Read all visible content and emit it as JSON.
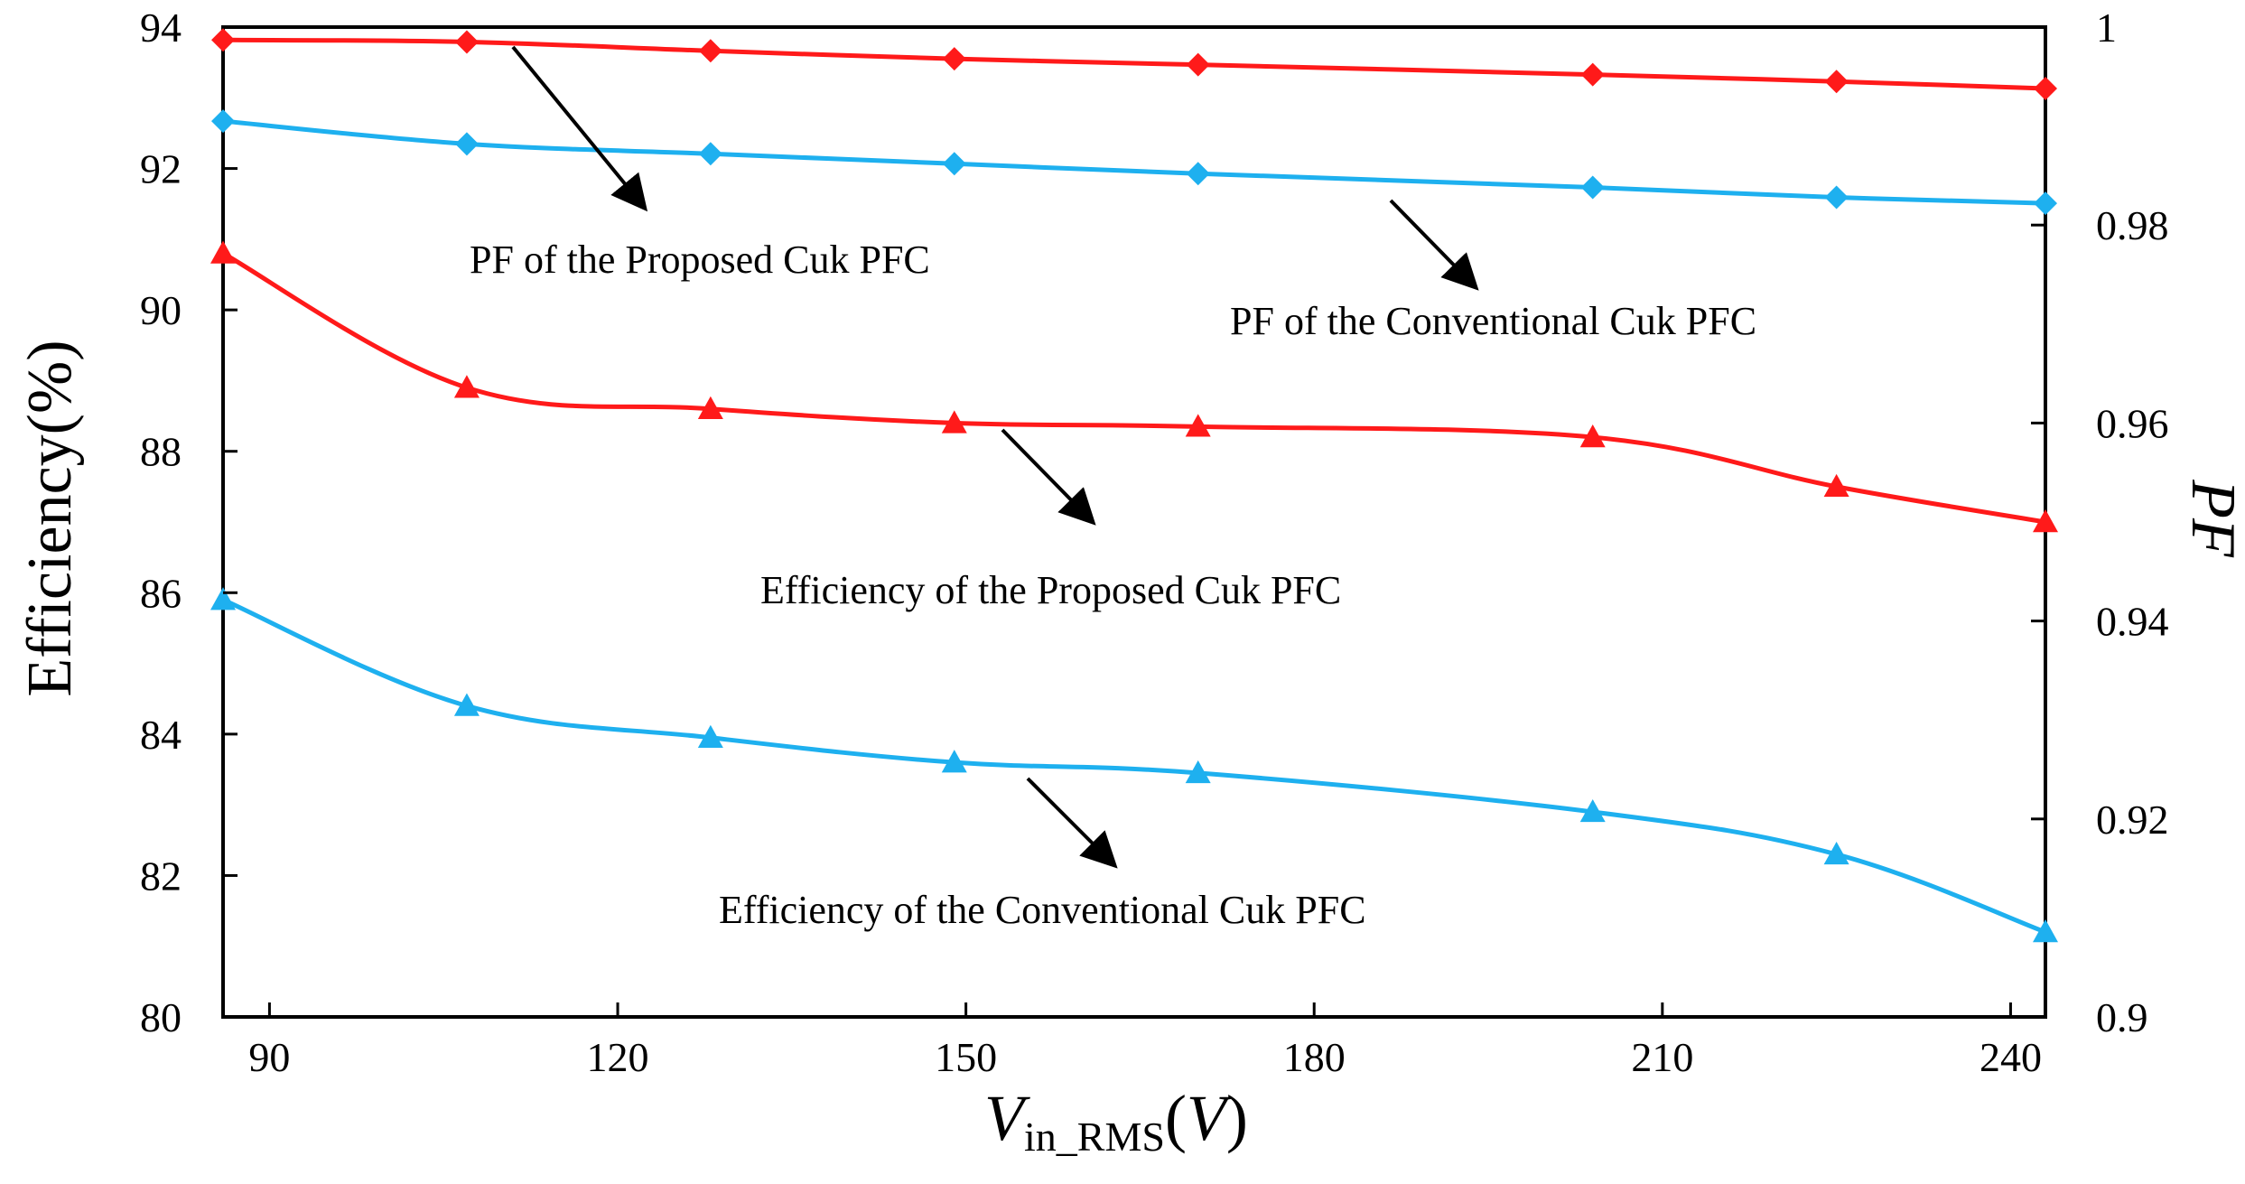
{
  "chart_data": {
    "type": "line",
    "title": "",
    "xlabel": {
      "main": "V",
      "subscript": "in_RMS",
      "unit_open": "(",
      "unit": "V",
      "unit_close": ")"
    },
    "ylabel_left": "Efficiency(%)",
    "ylabel_right": "PF",
    "xlim": [
      86,
      243
    ],
    "ylim_left": [
      80,
      94
    ],
    "ylim_right": [
      0.9,
      1.0
    ],
    "x_ticks": [
      90,
      120,
      150,
      180,
      210,
      240
    ],
    "y_left_ticks": [
      80,
      82,
      84,
      86,
      88,
      90,
      92,
      94
    ],
    "y_right_ticks": [
      "0.9",
      "0.92",
      "0.94",
      "0.96",
      "0.98",
      "1"
    ],
    "series": [
      {
        "name": "PF of the Proposed Cuk PFC",
        "axis": "right",
        "color": "#ff1a1a",
        "marker": "diamond",
        "x": [
          86,
          107,
          128,
          149,
          170,
          204,
          225,
          243
        ],
        "y": [
          0.9987,
          0.9985,
          0.9976,
          0.9968,
          0.9962,
          0.9952,
          0.9945,
          0.9938
        ]
      },
      {
        "name": "PF of the Conventional Cuk PFC",
        "axis": "right",
        "color": "#1eb0ef",
        "marker": "diamond",
        "x": [
          86,
          107,
          128,
          149,
          170,
          204,
          225,
          243
        ],
        "y": [
          0.9905,
          0.9882,
          0.9872,
          0.9862,
          0.9852,
          0.9838,
          0.9828,
          0.9822
        ]
      },
      {
        "name": "Efficiency of the Proposed Cuk PFC",
        "axis": "left",
        "color": "#ff1a1a",
        "marker": "triangle",
        "x": [
          86,
          107,
          128,
          149,
          170,
          204,
          225,
          243
        ],
        "y": [
          90.8,
          88.9,
          88.6,
          88.4,
          88.35,
          88.2,
          87.5,
          87.0
        ]
      },
      {
        "name": "Efficiency of the Conventional Cuk PFC",
        "axis": "left",
        "color": "#1eb0ef",
        "marker": "triangle",
        "x": [
          86,
          107,
          128,
          149,
          170,
          204,
          225,
          243
        ],
        "y": [
          85.9,
          84.4,
          83.95,
          83.6,
          83.45,
          82.9,
          82.3,
          81.2
        ]
      }
    ],
    "annotations": [
      {
        "text": "PF of the Proposed Cuk PFC",
        "series": 0
      },
      {
        "text": "PF of the Conventional Cuk PFC",
        "series": 1
      },
      {
        "text": "Efficiency of the Proposed Cuk PFC",
        "series": 2
      },
      {
        "text": "Efficiency of the Conventional Cuk PFC",
        "series": 3
      }
    ]
  }
}
